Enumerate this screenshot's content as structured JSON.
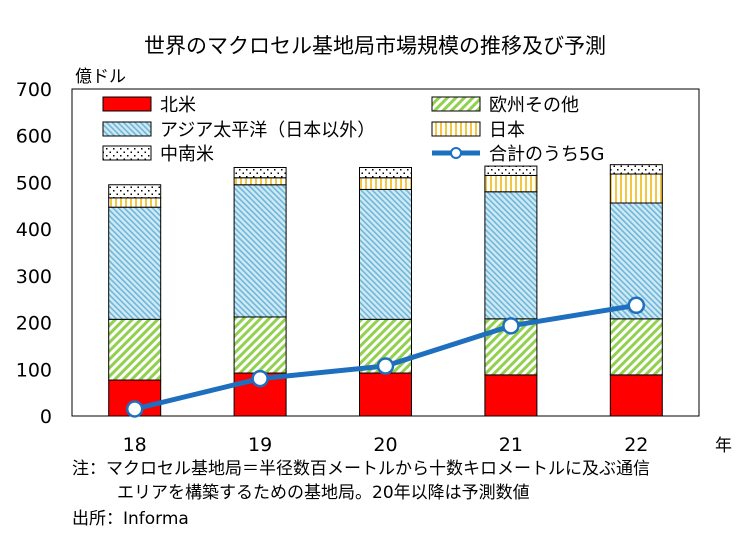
{
  "chart_data": {
    "type": "bar",
    "title": "世界のマクロセル基地局市場規模の推移及び予測",
    "ylabel": "億ドル",
    "xlabel": "年",
    "ylim": [
      0,
      700
    ],
    "yticks": [
      0,
      100,
      200,
      300,
      400,
      500,
      600,
      700
    ],
    "categories": [
      "18",
      "19",
      "20",
      "21",
      "22"
    ],
    "stacked": true,
    "legend_position": "top-inside",
    "series": [
      {
        "name": "北米",
        "pattern": "solid",
        "color": "#ff0000",
        "values": [
          77,
          92,
          92,
          88,
          88
        ]
      },
      {
        "name": "欧州その他",
        "pattern": "diagonal-hatch",
        "color": "#92d050",
        "values": [
          130,
          120,
          115,
          120,
          120
        ]
      },
      {
        "name": "アジア太平洋（日本以外）",
        "pattern": "dotted-diagonal",
        "color": "#6fb7d8",
        "values": [
          240,
          283,
          278,
          272,
          248
        ]
      },
      {
        "name": "日本",
        "pattern": "vertical-stripes",
        "color": "#f2c744",
        "values": [
          20,
          15,
          25,
          35,
          62
        ]
      },
      {
        "name": "中南米",
        "pattern": "dots",
        "color": "#000000",
        "values": [
          28,
          22,
          22,
          20,
          20
        ]
      }
    ],
    "line_series": {
      "name": "合計のうち5G",
      "color": "#1f6fbf",
      "values": [
        15,
        80,
        107,
        193,
        237
      ]
    }
  },
  "notes": {
    "line1": "注：マクロセル基地局＝半径数百メートルから十数キロメートルに及ぶ通信",
    "line2": "エリアを構築するための基地局。20年以降は予測数値",
    "source": "出所：Informa"
  }
}
